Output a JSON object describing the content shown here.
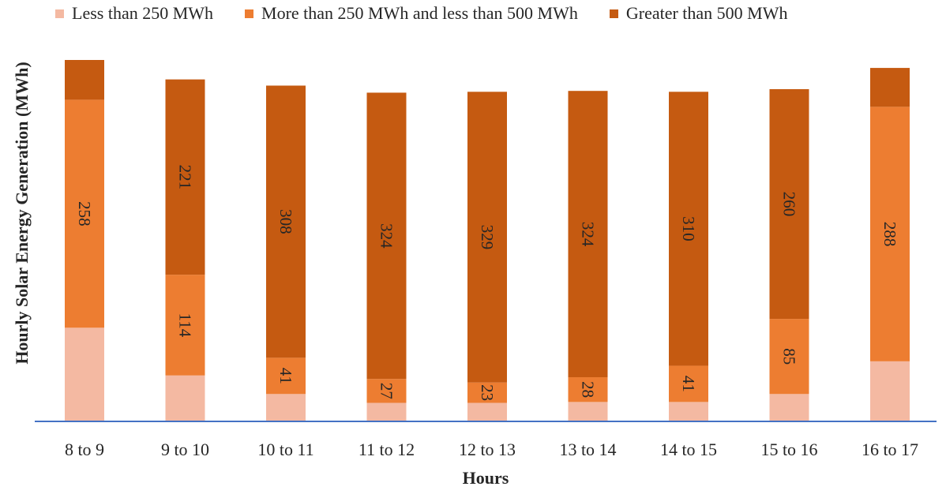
{
  "chart_data": {
    "type": "bar",
    "stacked": true,
    "categories": [
      "8 to 9",
      "9 to 10",
      "10 to 11",
      "11 to 12",
      "12 to 13",
      "13 to 14",
      "14 to 15",
      "15 to 16",
      "16 to 17"
    ],
    "series": [
      {
        "name": "Less than 250 MWh",
        "color": "#F4B9A2",
        "values": [
          106,
          52,
          31,
          21,
          21,
          22,
          22,
          31,
          68
        ],
        "labels": [
          "",
          "",
          "",
          "",
          "",
          "",
          "",
          "",
          ""
        ]
      },
      {
        "name": "More than 250 MWh and less than 500 MWh",
        "color": "#ED7D31",
        "values": [
          258,
          114,
          41,
          27,
          23,
          28,
          41,
          85,
          288
        ],
        "labels": [
          "258",
          "114",
          "41",
          "27",
          "23",
          "28",
          "41",
          "85",
          "288"
        ]
      },
      {
        "name": "Greater than 500 MWh",
        "color": "#C55A11",
        "values": [
          45,
          221,
          308,
          324,
          329,
          324,
          310,
          260,
          44
        ],
        "labels": [
          "",
          "221",
          "308",
          "324",
          "329",
          "324",
          "310",
          "260",
          ""
        ]
      }
    ],
    "xlabel": "Hours",
    "ylabel": "Hourly Solar Energy Generation (MWh)",
    "ylim": [
      0,
      409
    ],
    "grid": false,
    "legend": "top",
    "axis_color": "#4472C4"
  }
}
